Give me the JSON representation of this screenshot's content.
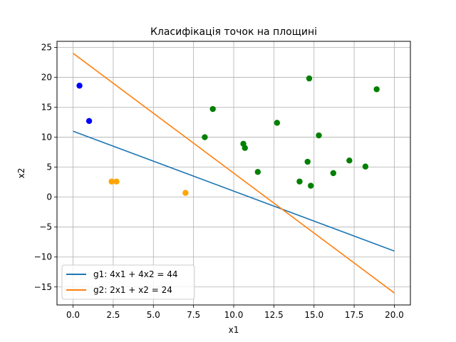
{
  "chart_data": {
    "type": "scatter",
    "title": "Класифікація точок на площині",
    "xlabel": "x1",
    "ylabel": "x2",
    "xlim": [
      -1.0,
      21.0
    ],
    "ylim": [
      -18.0,
      26.0
    ],
    "xticks": [
      0.0,
      2.5,
      5.0,
      7.5,
      10.0,
      12.5,
      15.0,
      17.5,
      20.0
    ],
    "xtick_labels": [
      "0.0",
      "2.5",
      "5.0",
      "7.5",
      "10.0",
      "12.5",
      "15.0",
      "17.5",
      "20.0"
    ],
    "yticks": [
      -15,
      -10,
      -5,
      0,
      5,
      10,
      15,
      20,
      25
    ],
    "ytick_labels": [
      "−15",
      "−10",
      "−5",
      "0",
      "5",
      "10",
      "15",
      "20",
      "25"
    ],
    "grid": true,
    "legend_position": "lower-left",
    "lines": [
      {
        "name": "g1: 4x1 + 4x2 = 44",
        "color": "#1f77b4",
        "x": [
          0,
          20
        ],
        "y": [
          11,
          -9
        ]
      },
      {
        "name": "g2: 2x1 + x2 = 24",
        "color": "#ff7f0e",
        "x": [
          0,
          20
        ],
        "y": [
          24,
          -16
        ]
      }
    ],
    "points": [
      {
        "color": "#0000ff",
        "data": [
          [
            0.4,
            18.6
          ],
          [
            1.0,
            12.7
          ]
        ]
      },
      {
        "color": "#ffa500",
        "data": [
          [
            2.4,
            2.6
          ],
          [
            2.7,
            2.6
          ],
          [
            7.0,
            0.7
          ]
        ]
      },
      {
        "color": "#008000",
        "data": [
          [
            8.2,
            10.0
          ],
          [
            8.7,
            14.7
          ],
          [
            10.6,
            8.9
          ],
          [
            10.7,
            8.2
          ],
          [
            11.5,
            4.2
          ],
          [
            12.7,
            12.4
          ],
          [
            14.1,
            2.6
          ],
          [
            14.6,
            5.9
          ],
          [
            14.7,
            19.8
          ],
          [
            14.8,
            1.9
          ],
          [
            15.3,
            10.3
          ],
          [
            16.2,
            4.0
          ],
          [
            17.2,
            6.1
          ],
          [
            18.2,
            5.1
          ],
          [
            18.9,
            18.0
          ]
        ]
      }
    ]
  }
}
